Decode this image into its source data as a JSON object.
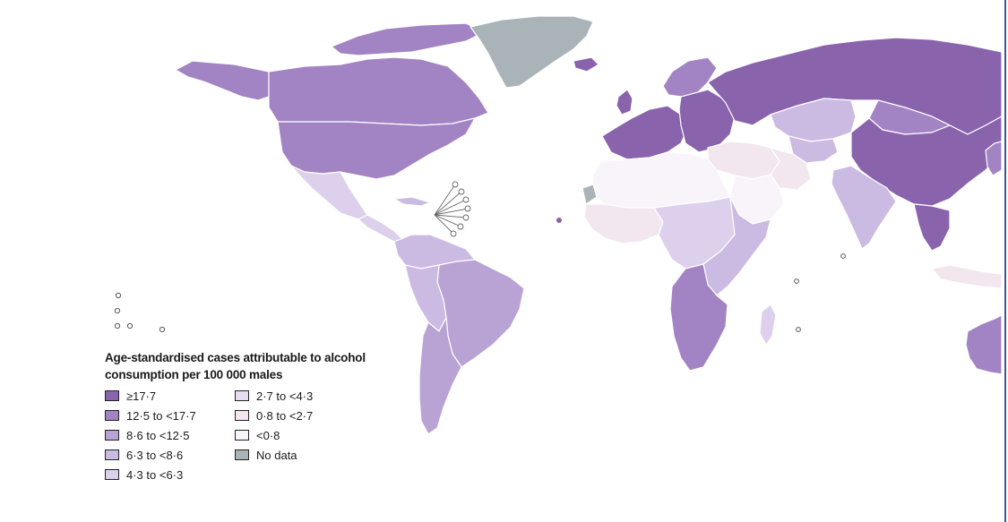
{
  "legend": {
    "title": "Age-standardised cases attributable to alcohol\nconsumption per 100 000 males",
    "items": [
      {
        "label": "≥17·7",
        "color": "#8a63ad"
      },
      {
        "label": "12·5 to <17·7",
        "color": "#a283c3"
      },
      {
        "label": "8·6 to <12·5",
        "color": "#b9a3d5"
      },
      {
        "label": "6·3 to <8·6",
        "color": "#cbbae2"
      },
      {
        "label": "4·3 to <6·3",
        "color": "#dcd0ec"
      },
      {
        "label": "2·7 to <4·3",
        "color": "#e7ddf0"
      },
      {
        "label": "0·8 to <2·7",
        "color": "#f2e6ef"
      },
      {
        "label": "<0·8",
        "color": "#f8f4fa"
      },
      {
        "label": "No data",
        "color": "#a9b3b8"
      }
    ]
  },
  "map": {
    "regions": [
      {
        "name": "alaska",
        "tier": 1
      },
      {
        "name": "canada",
        "tier": 1
      },
      {
        "name": "arctic-islands",
        "tier": 1
      },
      {
        "name": "usa",
        "tier": 1
      },
      {
        "name": "mexico",
        "tier": 4
      },
      {
        "name": "central-america",
        "tier": 4
      },
      {
        "name": "cuba",
        "tier": 3
      },
      {
        "name": "greenland",
        "tier": 8
      },
      {
        "name": "iceland",
        "tier": 0
      },
      {
        "name": "uk",
        "tier": 0
      },
      {
        "name": "scandinavia",
        "tier": 1
      },
      {
        "name": "western-europe",
        "tier": 0
      },
      {
        "name": "eastern-europe",
        "tier": 0
      },
      {
        "name": "russia",
        "tier": 0
      },
      {
        "name": "kazakhstan",
        "tier": 3
      },
      {
        "name": "central-asia",
        "tier": 3
      },
      {
        "name": "china",
        "tier": 0
      },
      {
        "name": "mongolia",
        "tier": 1
      },
      {
        "name": "middle-east",
        "tier": 6
      },
      {
        "name": "iran",
        "tier": 6
      },
      {
        "name": "saudi-arabia",
        "tier": 7
      },
      {
        "name": "india",
        "tier": 3
      },
      {
        "name": "southeast-asia",
        "tier": 0
      },
      {
        "name": "japan",
        "tier": 1
      },
      {
        "name": "indonesia",
        "tier": 6
      },
      {
        "name": "north-africa",
        "tier": 7
      },
      {
        "name": "west-africa",
        "tier": 6
      },
      {
        "name": "central-africa",
        "tier": 4
      },
      {
        "name": "east-africa",
        "tier": 3
      },
      {
        "name": "southern-africa",
        "tier": 1
      },
      {
        "name": "madagascar",
        "tier": 4
      },
      {
        "name": "northern-south-america",
        "tier": 3
      },
      {
        "name": "brazil",
        "tier": 2
      },
      {
        "name": "andes",
        "tier": 3
      },
      {
        "name": "southern-cone",
        "tier": 2
      },
      {
        "name": "australia",
        "tier": 1
      },
      {
        "name": "western-sahara",
        "tier": 8
      }
    ]
  }
}
